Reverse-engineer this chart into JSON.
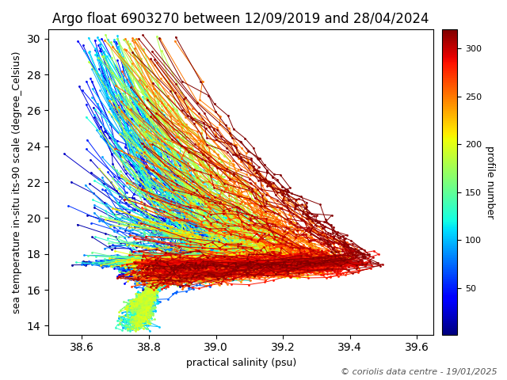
{
  "title": "Argo float 6903270 between 12/09/2019 and 28/04/2024",
  "xlabel": "practical salinity (psu)",
  "ylabel": "sea temperature in-situ its-90 scale (degree_Celsius)",
  "colorbar_label": "profile number",
  "copyright": "© coriolis data centre - 19/01/2025",
  "xlim": [
    38.5,
    39.65
  ],
  "ylim": [
    13.5,
    30.5
  ],
  "xticks": [
    38.6,
    38.8,
    39.0,
    39.2,
    39.4,
    39.6
  ],
  "yticks": [
    14,
    16,
    18,
    20,
    22,
    24,
    26,
    28,
    30
  ],
  "cmap": "jet",
  "vmin": 1,
  "vmax": 320,
  "cticks": [
    50,
    100,
    150,
    200,
    250,
    300
  ],
  "figsize": [
    6.4,
    4.8
  ],
  "dpi": 100,
  "title_fontsize": 12,
  "label_fontsize": 9,
  "colorbar_label_fontsize": 9,
  "copyright_fontsize": 8,
  "linewidth": 0.7,
  "markersize": 2.0
}
